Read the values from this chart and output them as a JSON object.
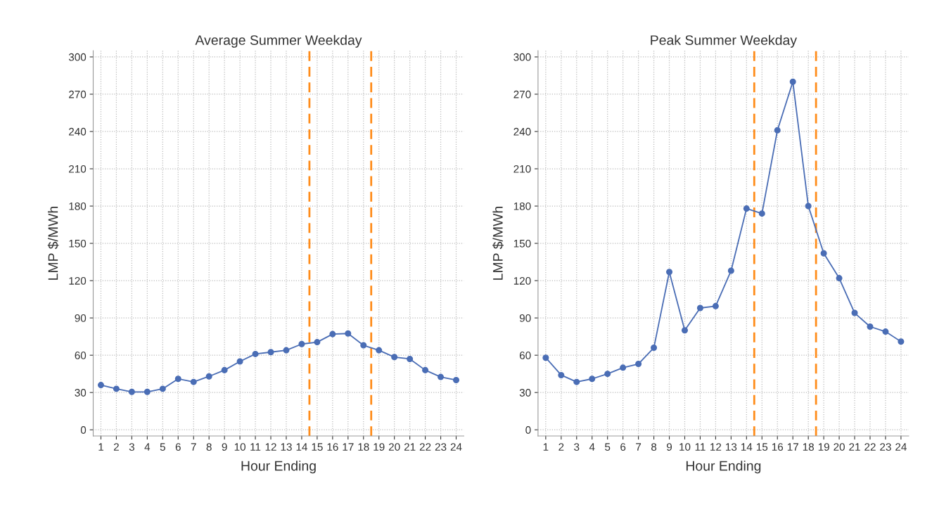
{
  "chart_data": [
    {
      "type": "line",
      "title": "Average Summer Weekday",
      "xlabel": "Hour Ending",
      "ylabel": "LMP $/MWh",
      "x": [
        1,
        2,
        3,
        4,
        5,
        6,
        7,
        8,
        9,
        10,
        11,
        12,
        13,
        14,
        15,
        16,
        17,
        18,
        19,
        20,
        21,
        22,
        23,
        24
      ],
      "series": [
        {
          "color": "#4a6db5",
          "values": [
            36,
            33,
            30.5,
            30.5,
            33,
            41,
            38.5,
            43,
            48,
            55,
            61,
            62.5,
            64,
            69,
            70.5,
            77,
            77.5,
            68,
            64,
            58.5,
            57,
            48,
            42.5,
            40
          ]
        }
      ],
      "xlim": [
        0.5,
        24.5
      ],
      "xticks": [
        1,
        2,
        3,
        4,
        5,
        6,
        7,
        8,
        9,
        10,
        11,
        12,
        13,
        14,
        15,
        16,
        17,
        18,
        19,
        20,
        21,
        22,
        23,
        24
      ],
      "ylim": [
        -5,
        305
      ],
      "yticks": [
        0,
        30,
        60,
        90,
        120,
        150,
        180,
        210,
        240,
        270,
        300
      ],
      "ref_lines": [
        {
          "axis": "x",
          "value": 14.5,
          "color": "#ff8c1a",
          "line_style": "dashed"
        },
        {
          "axis": "x",
          "value": 18.5,
          "color": "#ff8c1a",
          "line_style": "dashed"
        }
      ],
      "grid": true,
      "marker": "circle",
      "line_style": "solid"
    },
    {
      "type": "line",
      "title": "Peak Summer Weekday",
      "xlabel": "Hour Ending",
      "ylabel": "LMP $/MWh",
      "x": [
        1,
        2,
        3,
        4,
        5,
        6,
        7,
        8,
        9,
        10,
        11,
        12,
        13,
        14,
        15,
        16,
        17,
        18,
        19,
        20,
        21,
        22,
        23,
        24
      ],
      "series": [
        {
          "color": "#4a6db5",
          "values": [
            58,
            44,
            38.5,
            41,
            45,
            50,
            53,
            66,
            127,
            80,
            98,
            99.5,
            128,
            178,
            174,
            241,
            280,
            180,
            142,
            122,
            94,
            83,
            79,
            71
          ]
        }
      ],
      "xlim": [
        0.5,
        24.5
      ],
      "xticks": [
        1,
        2,
        3,
        4,
        5,
        6,
        7,
        8,
        9,
        10,
        11,
        12,
        13,
        14,
        15,
        16,
        17,
        18,
        19,
        20,
        21,
        22,
        23,
        24
      ],
      "ylim": [
        -5,
        305
      ],
      "yticks": [
        0,
        30,
        60,
        90,
        120,
        150,
        180,
        210,
        240,
        270,
        300
      ],
      "ref_lines": [
        {
          "axis": "x",
          "value": 14.5,
          "color": "#ff8c1a",
          "line_style": "dashed"
        },
        {
          "axis": "x",
          "value": 18.5,
          "color": "#ff8c1a",
          "line_style": "dashed"
        }
      ],
      "grid": true,
      "marker": "circle",
      "line_style": "solid"
    }
  ]
}
